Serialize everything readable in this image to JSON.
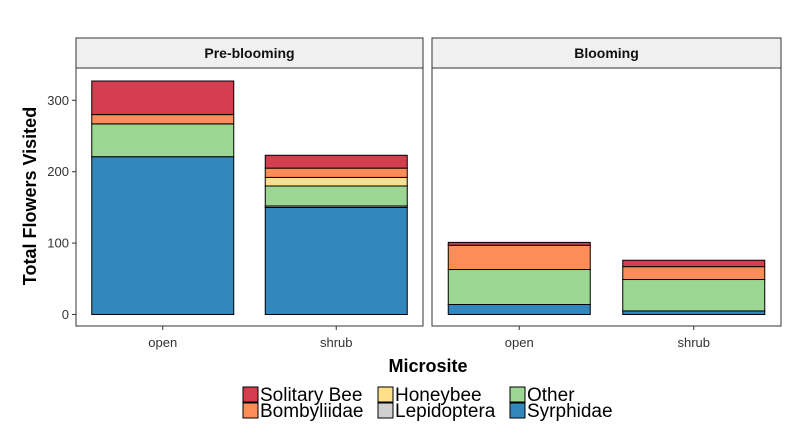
{
  "chart_data": {
    "type": "bar",
    "stacked": true,
    "xlabel": "Microsite",
    "ylabel": "Total Flowers Visited",
    "ylim": [
      0,
      340
    ],
    "yticks": [
      0,
      100,
      200,
      300
    ],
    "grid": false,
    "legend_position": "bottom",
    "panels": [
      {
        "title": "Pre-blooming",
        "categories": [
          "open",
          "shrub"
        ],
        "series": [
          {
            "name": "Syrphidae",
            "color": "#3287BD",
            "values": [
              221,
              150
            ]
          },
          {
            "name": "Lepidoptera",
            "color": "#D0D0D0",
            "values": [
              0,
              2
            ]
          },
          {
            "name": "Other",
            "color": "#9BD693",
            "values": [
              46,
              28
            ]
          },
          {
            "name": "Honeybee",
            "color": "#FEE08B",
            "values": [
              0,
              12
            ]
          },
          {
            "name": "Bombyliidae",
            "color": "#FC8D59",
            "values": [
              13,
              13
            ]
          },
          {
            "name": "Solitary Bee",
            "color": "#D53E4F",
            "values": [
              47,
              18
            ]
          }
        ]
      },
      {
        "title": "Blooming",
        "categories": [
          "open",
          "shrub"
        ],
        "series": [
          {
            "name": "Syrphidae",
            "color": "#3287BD",
            "values": [
              14,
              5
            ]
          },
          {
            "name": "Lepidoptera",
            "color": "#D0D0D0",
            "values": [
              0,
              0
            ]
          },
          {
            "name": "Other",
            "color": "#9BD693",
            "values": [
              49,
              44
            ]
          },
          {
            "name": "Honeybee",
            "color": "#FEE08B",
            "values": [
              0,
              0
            ]
          },
          {
            "name": "Bombyliidae",
            "color": "#FC8D59",
            "values": [
              34,
              18
            ]
          },
          {
            "name": "Solitary Bee",
            "color": "#D53E4F",
            "values": [
              4,
              9
            ]
          }
        ]
      }
    ],
    "legend": [
      {
        "name": "Solitary Bee",
        "color": "#D53E4F"
      },
      {
        "name": "Bombyliidae",
        "color": "#FC8D59"
      },
      {
        "name": "Honeybee",
        "color": "#FEE08B"
      },
      {
        "name": "Lepidoptera",
        "color": "#D0D0D0"
      },
      {
        "name": "Other",
        "color": "#9BD693"
      },
      {
        "name": "Syrphidae",
        "color": "#3287BD"
      }
    ]
  }
}
